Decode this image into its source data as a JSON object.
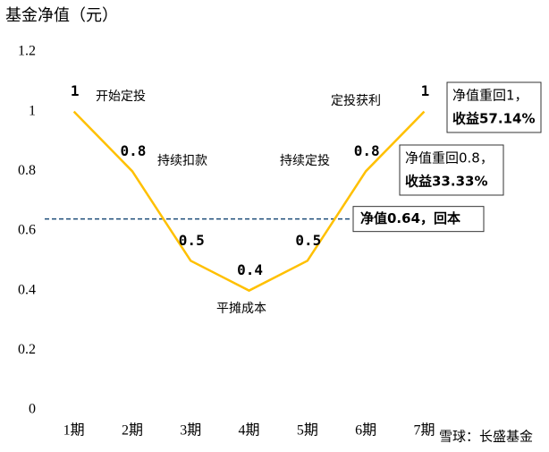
{
  "chart_data": {
    "type": "line",
    "title": "基金净值（元）",
    "categories": [
      "1期",
      "2期",
      "3期",
      "4期",
      "5期",
      "6期",
      "7期"
    ],
    "values": [
      1,
      0.8,
      0.5,
      0.4,
      0.5,
      0.8,
      1
    ],
    "color": "#ffc000",
    "value_label_color": "#e00000",
    "ylim": [
      0,
      1.2
    ],
    "yticks": [
      0,
      0.2,
      0.4,
      0.6,
      0.8,
      1,
      1.2
    ],
    "grid": false,
    "reference_line": {
      "value": 0.64,
      "label": "净值0.64，回本",
      "color": "#1f4e79",
      "label_color": "#e00000"
    },
    "annotations": [
      "开始定投",
      "持续扣款",
      "平摊成本",
      "持续定投",
      "定投获利"
    ],
    "callouts": [
      {
        "lines": [
          "净值重回1，",
          "收益57.14%"
        ]
      },
      {
        "lines": [
          "净值重回0.8，",
          "收益33.33%"
        ]
      }
    ],
    "watermark": "雪球：长盛基金"
  }
}
